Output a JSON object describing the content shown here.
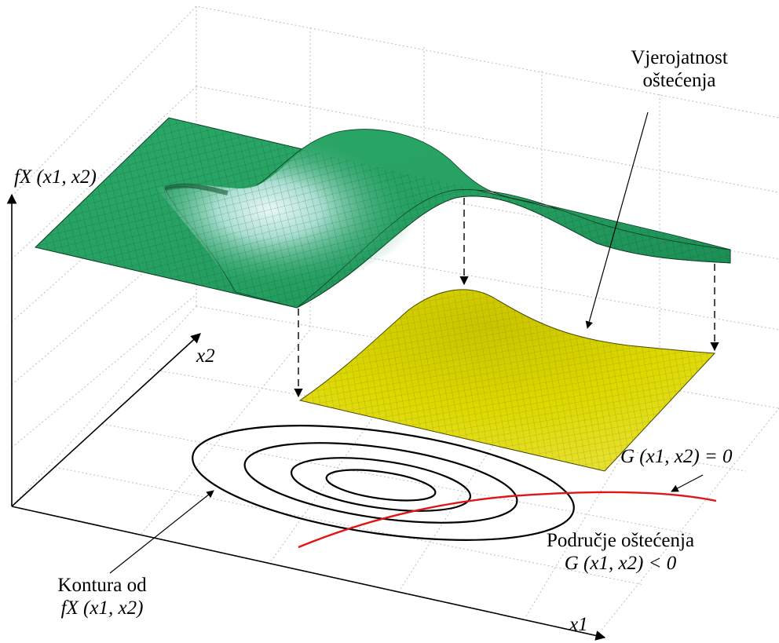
{
  "labels": {
    "vjer_line1": "Vjerojatnost",
    "vjer_line2": "oštećenja",
    "gfunc_eq": "G (x1, x2) = 0",
    "podrucje_line1": "Područje oštećenja",
    "podrucje_line2": "G (x1, x2) < 0",
    "kontura_line1": "Kontura od",
    "kontura_line2": "fX (x1, x2)",
    "fx_axis": "fX (x1, x2)",
    "x1_axis": "x1",
    "x2_axis": "x2"
  },
  "colors": {
    "surface_green": "#1f9a5c",
    "surface_light": "#e6f7f3",
    "mesh_line": "#0b3d22",
    "failure_yellow": "#d7d400",
    "limit_state_red": "#e01515",
    "contour_black": "#000000",
    "grid_gray": "#bdbdbd"
  }
}
